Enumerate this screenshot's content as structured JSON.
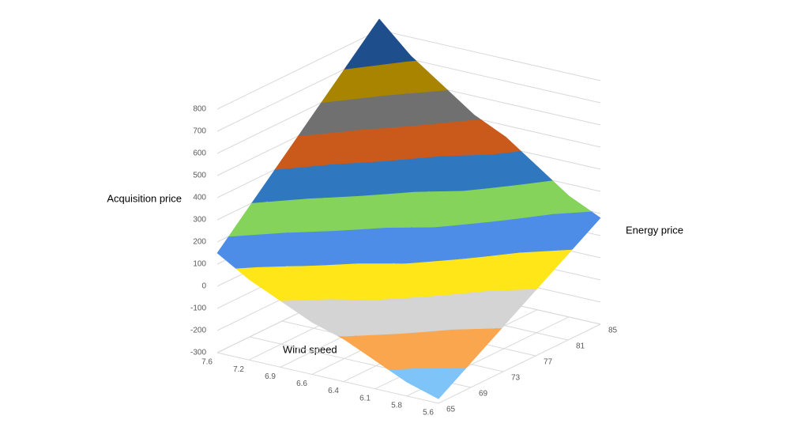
{
  "chart_data": {
    "type": "surface",
    "x_label": "Wind speed",
    "y_label": "Acquisition price",
    "z_label": "Energy price",
    "categories": [
      7.6,
      7.2,
      6.9,
      6.6,
      6.4,
      6.1,
      5.8,
      5.6
    ],
    "series": [
      {
        "name": "65",
        "values": [
          150,
          64,
          0,
          -65,
          -108,
          -172,
          -237,
          -280
        ]
      },
      {
        "name": "69",
        "values": [
          290,
          194,
          123,
          51,
          3,
          -68,
          -140,
          -188
        ]
      },
      {
        "name": "73",
        "values": [
          430,
          325,
          246,
          167,
          114,
          36,
          -43,
          -96
        ]
      },
      {
        "name": "77",
        "values": [
          570,
          455,
          370,
          283,
          226,
          140,
          53,
          -4
        ]
      },
      {
        "name": "81",
        "values": [
          710,
          586,
          493,
          399,
          337,
          244,
          150,
          88
        ]
      },
      {
        "name": "85",
        "values": [
          850,
          716,
          616,
          515,
          448,
          348,
          247,
          180
        ]
      }
    ],
    "ylim": [
      -300,
      800
    ],
    "yticks": [
      -300,
      -200,
      -100,
      0,
      100,
      200,
      300,
      400,
      500,
      600,
      700,
      800
    ],
    "band_colors": [
      "#7ec4f8",
      "#f9a64f",
      "#d4d4d4",
      "#ffe619",
      "#4d8de8",
      "#85d35a",
      "#2f78c0",
      "#c95a1c",
      "#707070",
      "#a88400",
      "#1f4e8c"
    ],
    "grid": true
  }
}
